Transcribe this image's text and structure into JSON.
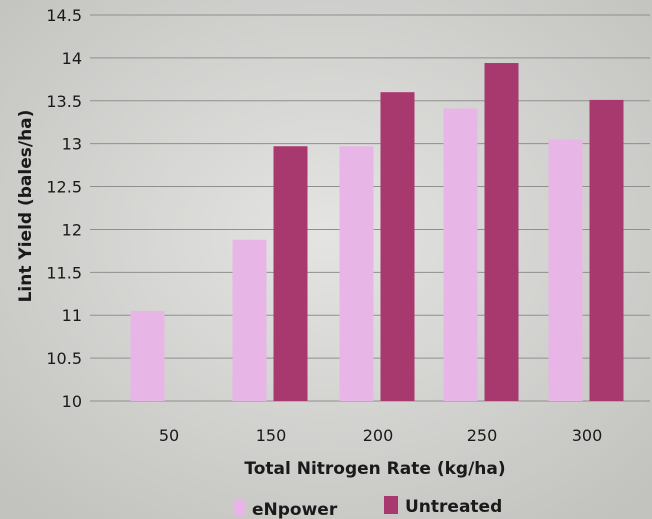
{
  "chart_data": {
    "type": "bar",
    "categories": [
      "50",
      "150",
      "200",
      "250",
      "300"
    ],
    "series": [
      {
        "name": "eNpower",
        "values": [
          11.05,
          11.88,
          12.97,
          13.41,
          13.05
        ],
        "color": "#e8b6e6"
      },
      {
        "name": "Untreated",
        "values": [
          null,
          12.97,
          13.6,
          13.94,
          13.51
        ],
        "color": "#a8396f"
      }
    ],
    "y_ticks": [
      "10",
      "10.5",
      "11",
      "11.5",
      "12",
      "12.5",
      "13",
      "13.5",
      "14",
      "14.5"
    ],
    "ylim": [
      10,
      14.5
    ],
    "xlabel": "Total Nitrogen Rate (kg/ha)",
    "ylabel": "Lint Yield (bales/ha)",
    "grid": true,
    "legend_position": "bottom-center"
  }
}
